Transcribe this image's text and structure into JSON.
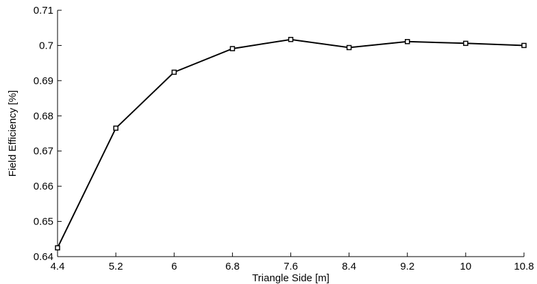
{
  "chart_data": {
    "type": "line",
    "title": "",
    "xlabel": "Triangle Side [m]",
    "ylabel": "Field Efficiency [%]",
    "xlim": [
      4.4,
      10.8
    ],
    "ylim": [
      0.64,
      0.71
    ],
    "xticks": [
      4.4,
      5.2,
      6,
      6.8,
      7.6,
      8.4,
      9.2,
      10,
      10.8
    ],
    "xtick_labels": [
      "4.4",
      "5.2",
      "6",
      "6.8",
      "7.6",
      "8.4",
      "9.2",
      "10",
      "10.8"
    ],
    "yticks": [
      0.64,
      0.65,
      0.66,
      0.67,
      0.68,
      0.69,
      0.7,
      0.71
    ],
    "ytick_labels": [
      "0.64",
      "0.65",
      "0.66",
      "0.67",
      "0.68",
      "0.69",
      "0.7",
      "0.71"
    ],
    "grid": false,
    "legend": "none",
    "series": [
      {
        "marker": "square",
        "color": "#000000",
        "x": [
          4.4,
          5.2,
          6,
          6.8,
          7.6,
          8.4,
          9.2,
          10,
          10.8
        ],
        "y": [
          0.6425,
          0.6765,
          0.6924,
          0.6991,
          0.7017,
          0.6994,
          0.7011,
          0.7006,
          0.7
        ]
      }
    ]
  }
}
